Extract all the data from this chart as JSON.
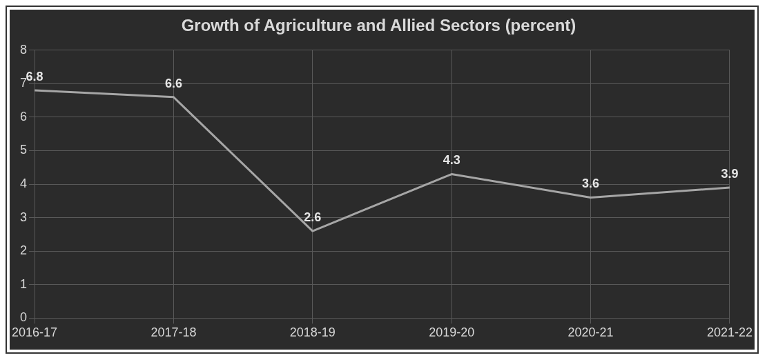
{
  "chart_data": {
    "type": "line",
    "title": "Growth of Agriculture and Allied Sectors (percent)",
    "categories": [
      "2016-17",
      "2017-18",
      "2018-19",
      "2019-20",
      "2020-21",
      "2021-22"
    ],
    "series": [
      {
        "color": "#a6a6a6",
        "values": [
          6.8,
          6.6,
          2.6,
          4.3,
          3.6,
          3.9
        ]
      }
    ],
    "ylim": [
      0,
      8
    ],
    "yticks": [
      0,
      1,
      2,
      3,
      4,
      5,
      6,
      7,
      8
    ],
    "grid": true,
    "data_labels": true,
    "marker": "none",
    "line_style": "solid",
    "legend": false
  }
}
